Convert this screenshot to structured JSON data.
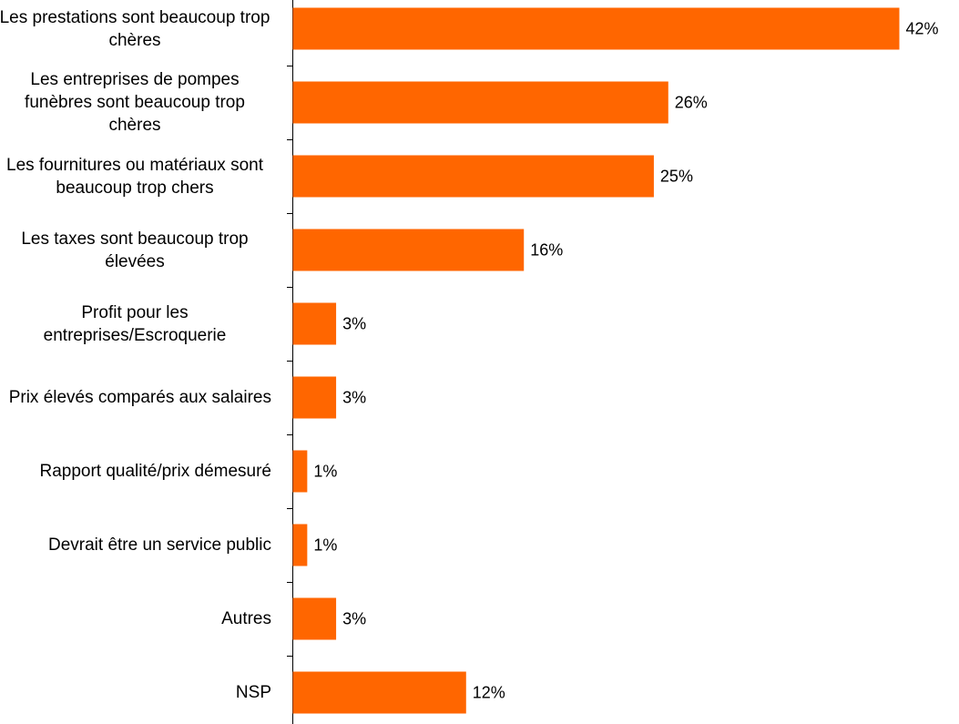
{
  "chart_data": {
    "type": "bar",
    "orientation": "horizontal",
    "categories": [
      "Les prestations sont beaucoup trop chères",
      "Les entreprises de pompes funèbres sont beaucoup trop chères",
      "Les fournitures ou matériaux sont beaucoup trop chers",
      "Les taxes sont beaucoup trop élevées",
      "Profit pour les entreprises/Escroquerie",
      "Prix élevés comparés aux salaires",
      "Rapport qualité/prix démesuré",
      "Devrait être un service public",
      "Autres",
      "NSP"
    ],
    "values": [
      42,
      26,
      25,
      16,
      3,
      3,
      1,
      1,
      3,
      12
    ],
    "value_labels": [
      "42%",
      "26%",
      "25%",
      "16%",
      "3%",
      "3%",
      "1%",
      "1%",
      "3%",
      "12%"
    ],
    "color": "#ff6600"
  }
}
